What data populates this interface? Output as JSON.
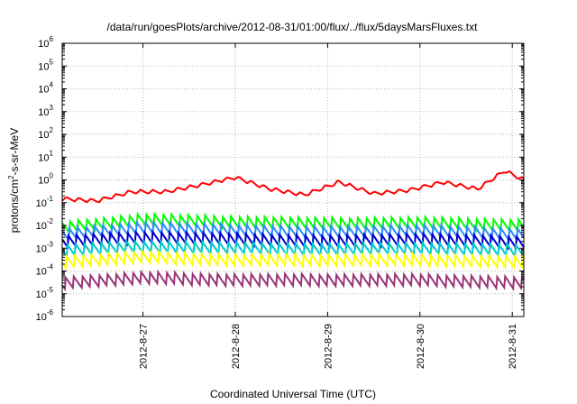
{
  "chart_data": {
    "type": "line",
    "title": "/data/run/goesPlots/archive/2012-08-31/01:00/flux/../flux/5daysMarsFluxes.txt",
    "xlabel": "Coordinated Universal Time (UTC)",
    "ylabel": {
      "prefix": "protons/cm",
      "sup": "2",
      "suffix": "-s-sr-MeV"
    },
    "x_ticks": [
      "2012-8-27",
      "2012-8-28",
      "2012-8-29",
      "2012-8-30",
      "2012-8-31"
    ],
    "x_range": [
      "2012-08-26 03:00",
      "2012-08-31 03:00"
    ],
    "y_scale": "log",
    "y_ticks_exponents": [
      -6,
      -5,
      -4,
      -3,
      -2,
      -1,
      0,
      1,
      2,
      3,
      4,
      5,
      6
    ],
    "y_tick_base": "10",
    "ylim": [
      1e-06,
      1000000.0
    ],
    "grid": true,
    "legend": "none",
    "series": [
      {
        "color": "#ff0000",
        "x": [
          "2012-08-26 03:00",
          "2012-08-26 12:00",
          "2012-08-26 21:00",
          "2012-08-27 06:00",
          "2012-08-27 15:00",
          "2012-08-28 00:00",
          "2012-08-28 09:00",
          "2012-08-28 18:00",
          "2012-08-29 03:00",
          "2012-08-29 12:00",
          "2012-08-29 21:00",
          "2012-08-30 06:00",
          "2012-08-30 15:00",
          "2012-08-30 22:00",
          "2012-08-31 03:00"
        ],
        "values": [
          0.15,
          0.12,
          0.3,
          0.3,
          0.6,
          1.3,
          0.4,
          0.22,
          0.8,
          0.25,
          0.35,
          0.8,
          0.4,
          2.5,
          1.0
        ]
      },
      {
        "color": "#00ff00",
        "x": [
          "2012-08-26 03:00",
          "2012-08-27 00:00",
          "2012-08-28 00:00",
          "2012-08-29 00:00",
          "2012-08-30 00:00",
          "2012-08-31 03:00"
        ],
        "values": [
          0.008,
          0.018,
          0.014,
          0.012,
          0.013,
          0.01
        ]
      },
      {
        "color": "#2e8bff",
        "x": [
          "2012-08-26 03:00",
          "2012-08-27 00:00",
          "2012-08-28 00:00",
          "2012-08-29 00:00",
          "2012-08-30 00:00",
          "2012-08-31 03:00"
        ],
        "values": [
          0.004,
          0.008,
          0.006,
          0.005,
          0.006,
          0.004
        ]
      },
      {
        "color": "#0000cc",
        "x": [
          "2012-08-26 03:00",
          "2012-08-27 00:00",
          "2012-08-28 00:00",
          "2012-08-29 00:00",
          "2012-08-30 00:00",
          "2012-08-31 03:00"
        ],
        "values": [
          0.002,
          0.003,
          0.0025,
          0.002,
          0.0025,
          0.0018
        ]
      },
      {
        "color": "#00cccc",
        "x": [
          "2012-08-26 03:00",
          "2012-08-27 00:00",
          "2012-08-28 00:00",
          "2012-08-29 00:00",
          "2012-08-30 00:00",
          "2012-08-31 03:00"
        ],
        "values": [
          0.0008,
          0.0012,
          0.001,
          0.0009,
          0.001,
          0.0008
        ]
      },
      {
        "color": "#ffff00",
        "x": [
          "2012-08-26 03:00",
          "2012-08-27 00:00",
          "2012-08-28 00:00",
          "2012-08-29 00:00",
          "2012-08-30 00:00",
          "2012-08-31 03:00"
        ],
        "values": [
          0.00025,
          0.0004,
          0.0003,
          0.0003,
          0.0003,
          0.00025
        ]
      },
      {
        "color": "#993377",
        "x": [
          "2012-08-26 03:00",
          "2012-08-27 00:00",
          "2012-08-28 00:00",
          "2012-08-29 00:00",
          "2012-08-30 00:00",
          "2012-08-31 03:00"
        ],
        "values": [
          3e-05,
          5e-05,
          4e-05,
          4e-05,
          4e-05,
          3e-05
        ]
      }
    ]
  }
}
